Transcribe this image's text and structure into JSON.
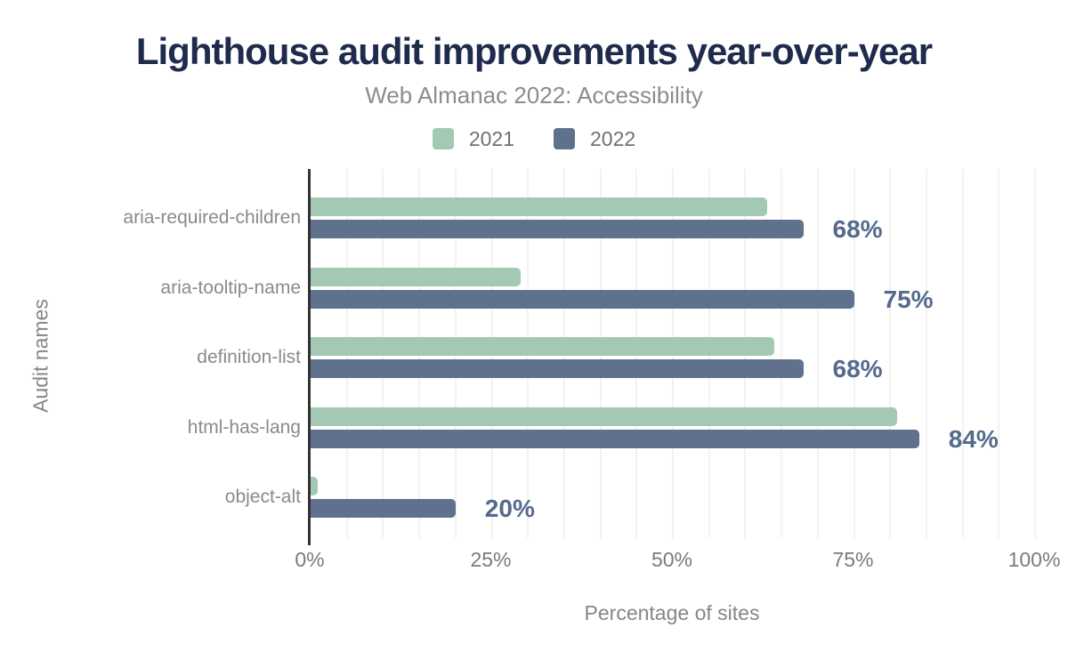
{
  "title": "Lighthouse audit improvements year-over-year",
  "subtitle": "Web Almanac 2022: Accessibility",
  "legend": [
    {
      "label": "2021",
      "color": "#a3c9b5"
    },
    {
      "label": "2022",
      "color": "#5f718c"
    }
  ],
  "chart_data": {
    "type": "bar",
    "orientation": "horizontal",
    "title": "Lighthouse audit improvements year-over-year",
    "subtitle": "Web Almanac 2022: Accessibility",
    "categories": [
      "aria-required-children",
      "aria-tooltip-name",
      "definition-list",
      "html-has-lang",
      "object-alt"
    ],
    "series": [
      {
        "name": "2021",
        "color": "#a3c9b5",
        "values": [
          63,
          29,
          64,
          81,
          1
        ]
      },
      {
        "name": "2022",
        "color": "#5f718c",
        "values": [
          68,
          75,
          68,
          84,
          20
        ]
      }
    ],
    "data_labels": [
      "68%",
      "75%",
      "68%",
      "84%",
      "20%"
    ],
    "data_label_color": "#556a8c",
    "xlabel": "Percentage of sites",
    "ylabel": "Audit names",
    "xlim": [
      0,
      100
    ],
    "xticks": [
      {
        "value": 0,
        "label": "0%"
      },
      {
        "value": 25,
        "label": "25%"
      },
      {
        "value": 50,
        "label": "50%"
      },
      {
        "value": 75,
        "label": "75%"
      },
      {
        "value": 100,
        "label": "100%"
      }
    ],
    "grid": "vertical, every 5%, legend top center"
  }
}
